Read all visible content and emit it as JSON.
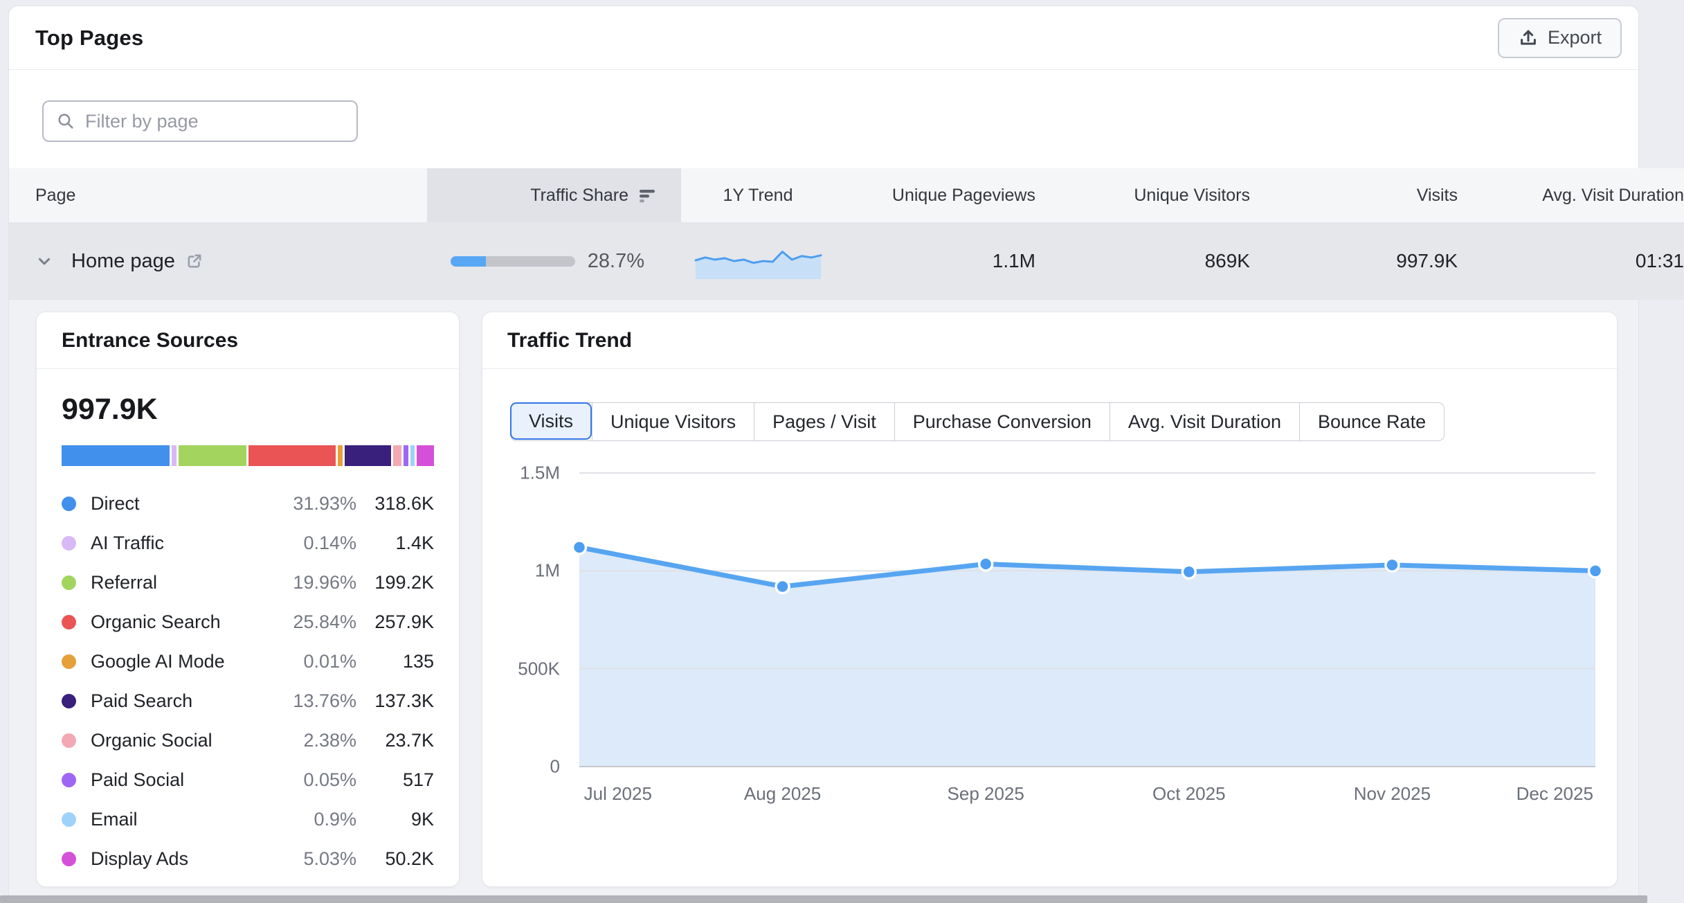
{
  "header": {
    "title": "Top Pages",
    "export_label": "Export"
  },
  "filter": {
    "placeholder": "Filter by page"
  },
  "table": {
    "columns": [
      "Page",
      "Traffic Share",
      "1Y Trend",
      "Unique Pageviews",
      "Unique Visitors",
      "Visits",
      "Avg. Visit Duration"
    ],
    "sorted_column": "Traffic Share",
    "row": {
      "page": "Home page",
      "traffic_share_pct": "28.7%",
      "traffic_share_fill_pct": 28.7,
      "unique_pageviews": "1.1M",
      "unique_visitors": "869K",
      "visits": "997.9K",
      "avg_visit_duration": "01:31"
    }
  },
  "entrance_sources": {
    "title": "Entrance Sources",
    "total": "997.9K",
    "items": [
      {
        "label": "Direct",
        "pct": "31.93%",
        "pct_num": 31.93,
        "value": "318.6K",
        "color": "#4190ec"
      },
      {
        "label": "AI Traffic",
        "pct": "0.14%",
        "pct_num": 0.14,
        "value": "1.4K",
        "color": "#d9b8f8"
      },
      {
        "label": "Referral",
        "pct": "19.96%",
        "pct_num": 19.96,
        "value": "199.2K",
        "color": "#a2d45e"
      },
      {
        "label": "Organic Search",
        "pct": "25.84%",
        "pct_num": 25.84,
        "value": "257.9K",
        "color": "#ea5455"
      },
      {
        "label": "Google AI Mode",
        "pct": "0.01%",
        "pct_num": 0.01,
        "value": "135",
        "color": "#e5a03a"
      },
      {
        "label": "Paid Search",
        "pct": "13.76%",
        "pct_num": 13.76,
        "value": "137.3K",
        "color": "#38207c"
      },
      {
        "label": "Organic Social",
        "pct": "2.38%",
        "pct_num": 2.38,
        "value": "23.7K",
        "color": "#f2a9b3"
      },
      {
        "label": "Paid Social",
        "pct": "0.05%",
        "pct_num": 0.05,
        "value": "517",
        "color": "#9e66f2"
      },
      {
        "label": "Email",
        "pct": "0.9%",
        "pct_num": 0.9,
        "value": "9K",
        "color": "#9fd1fa"
      },
      {
        "label": "Display Ads",
        "pct": "5.03%",
        "pct_num": 5.03,
        "value": "50.2K",
        "color": "#d550d8"
      }
    ]
  },
  "traffic_trend": {
    "title": "Traffic Trend",
    "tabs": [
      "Visits",
      "Unique Visitors",
      "Pages / Visit",
      "Purchase Conversion",
      "Avg. Visit Duration",
      "Bounce Rate"
    ],
    "active_tab": "Visits"
  },
  "chart_data": [
    {
      "name": "traffic-trend-chart",
      "type": "area",
      "x": [
        "Jul 2025",
        "Aug 2025",
        "Sep 2025",
        "Oct 2025",
        "Nov 2025",
        "Dec 2025"
      ],
      "series": [
        {
          "name": "Visits",
          "values": [
            1120000,
            920000,
            1035000,
            995000,
            1030000,
            1000000
          ]
        }
      ],
      "ylim": [
        0,
        1500000
      ],
      "yticks": [
        {
          "value": 1500000,
          "label": "1.5M"
        },
        {
          "value": 1000000,
          "label": "1M"
        },
        {
          "value": 500000,
          "label": "500K"
        },
        {
          "value": 0,
          "label": "0"
        }
      ],
      "grid": true,
      "legend": "none",
      "line_color": "#57a5f1",
      "fill_color": "#dceafa",
      "point_color": "#4d9ef0"
    },
    {
      "name": "1y-trend-sparkline",
      "type": "area",
      "values": [
        52,
        60,
        54,
        58,
        50,
        54,
        45,
        50,
        48,
        76,
        54,
        64,
        60,
        66
      ],
      "ylim": [
        0,
        100
      ],
      "line_color": "#4d9ef0",
      "fill_color": "#c7dff7"
    }
  ]
}
